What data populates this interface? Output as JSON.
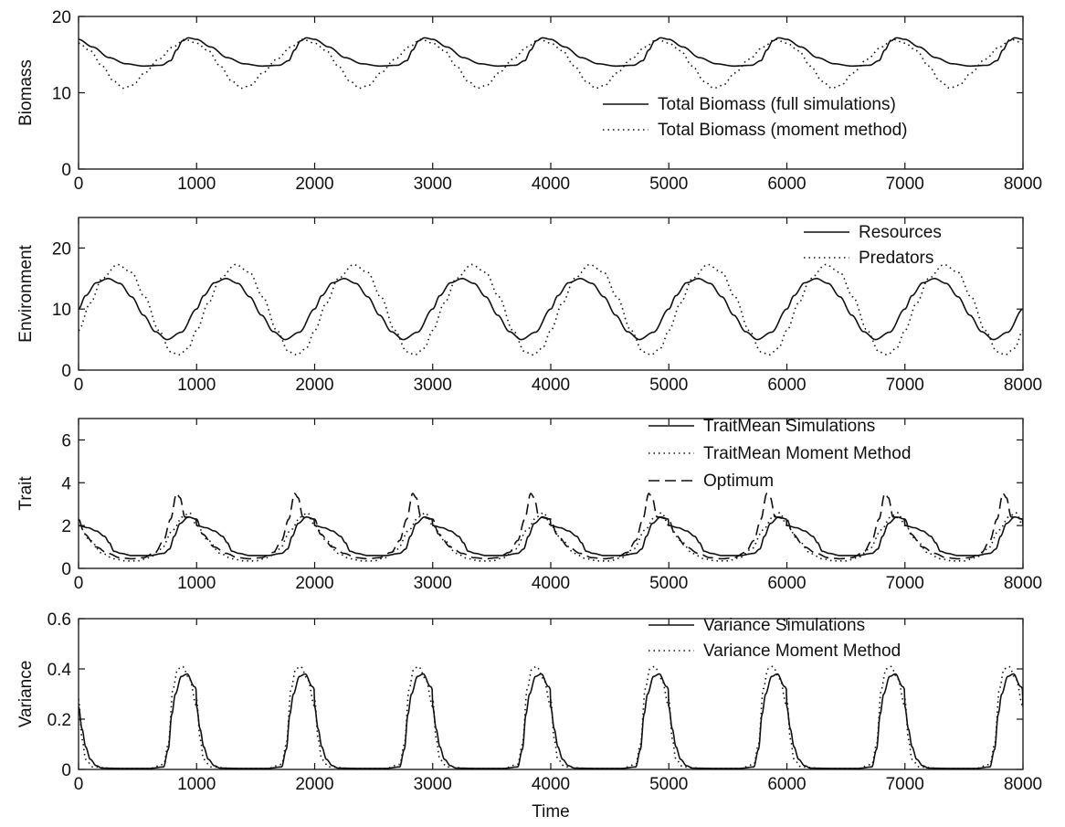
{
  "chart_data": [
    {
      "type": "line",
      "ylabel": "Biomass",
      "xlabel": "",
      "xlim": [
        0,
        8000
      ],
      "ylim": [
        0,
        20
      ],
      "xticks": [
        0,
        1000,
        2000,
        3000,
        4000,
        5000,
        6000,
        7000,
        8000
      ],
      "yticks": [
        0,
        10,
        20
      ],
      "legend_position": "right",
      "series": [
        {
          "name": "Total Biomass (full simulations)",
          "style": "solid",
          "period": 1000,
          "keys": [
            [
              0,
              17.0
            ],
            [
              120,
              16.0
            ],
            [
              260,
              14.6
            ],
            [
              400,
              13.8
            ],
            [
              550,
              13.5
            ],
            [
              700,
              13.6
            ],
            [
              780,
              14.2
            ],
            [
              830,
              15.6
            ],
            [
              880,
              16.8
            ],
            [
              930,
              17.2
            ],
            [
              1000,
              17.0
            ]
          ]
        },
        {
          "name": "Total Biomass (moment method)",
          "style": "dotted",
          "period": 1000,
          "keys": [
            [
              0,
              16.5
            ],
            [
              100,
              15.5
            ],
            [
              200,
              13.5
            ],
            [
              300,
              11.5
            ],
            [
              380,
              10.6
            ],
            [
              460,
              11.0
            ],
            [
              560,
              12.6
            ],
            [
              680,
              14.4
            ],
            [
              800,
              16.0
            ],
            [
              900,
              17.0
            ],
            [
              1000,
              16.5
            ]
          ]
        }
      ]
    },
    {
      "type": "line",
      "ylabel": "Environment",
      "xlabel": "",
      "xlim": [
        0,
        8000
      ],
      "ylim": [
        0,
        25
      ],
      "xticks": [
        0,
        1000,
        2000,
        3000,
        4000,
        5000,
        6000,
        7000,
        8000
      ],
      "yticks": [
        0,
        10,
        20
      ],
      "legend_position": "top-right",
      "series": [
        {
          "name": "Resources",
          "style": "solid",
          "period": 1000,
          "keys": [
            [
              0,
              10.0
            ],
            [
              60,
              12.2
            ],
            [
              150,
              14.3
            ],
            [
              250,
              15.0
            ],
            [
              350,
              14.2
            ],
            [
              450,
              12.0
            ],
            [
              550,
              9.0
            ],
            [
              650,
              6.3
            ],
            [
              750,
              5.0
            ],
            [
              870,
              6.2
            ],
            [
              1000,
              10.0
            ]
          ]
        },
        {
          "name": "Predators",
          "style": "dotted",
          "period": 1000,
          "keys": [
            [
              0,
              6.5
            ],
            [
              100,
              11.0
            ],
            [
              200,
              15.0
            ],
            [
              330,
              17.3
            ],
            [
              450,
              16.0
            ],
            [
              560,
              12.0
            ],
            [
              680,
              6.5
            ],
            [
              780,
              3.0
            ],
            [
              850,
              2.5
            ],
            [
              930,
              3.6
            ],
            [
              1000,
              6.5
            ]
          ]
        }
      ]
    },
    {
      "type": "line",
      "ylabel": "Trait",
      "xlabel": "",
      "xlim": [
        0,
        8000
      ],
      "ylim": [
        0,
        7
      ],
      "xticks": [
        0,
        1000,
        2000,
        3000,
        4000,
        5000,
        6000,
        7000,
        8000
      ],
      "yticks": [
        0,
        2,
        4,
        6
      ],
      "legend_position": "top-right",
      "series": [
        {
          "name": "TraitMean Simulations",
          "style": "solid",
          "period": 1000,
          "keys": [
            [
              0,
              2.0
            ],
            [
              80,
              1.9
            ],
            [
              150,
              1.75
            ],
            [
              220,
              1.5
            ],
            [
              260,
              1.2
            ],
            [
              300,
              0.8
            ],
            [
              360,
              0.7
            ],
            [
              450,
              0.6
            ],
            [
              600,
              0.6
            ],
            [
              720,
              0.7
            ],
            [
              770,
              0.9
            ],
            [
              810,
              1.5
            ],
            [
              860,
              2.1
            ],
            [
              930,
              2.4
            ],
            [
              1000,
              2.3
            ]
          ]
        },
        {
          "name": "TraitMean Moment Method",
          "style": "dotted",
          "period": 1000,
          "keys": [
            [
              0,
              2.0
            ],
            [
              100,
              1.3
            ],
            [
              200,
              0.7
            ],
            [
              300,
              0.45
            ],
            [
              400,
              0.35
            ],
            [
              500,
              0.35
            ],
            [
              600,
              0.5
            ],
            [
              700,
              0.9
            ],
            [
              800,
              1.8
            ],
            [
              880,
              2.4
            ],
            [
              940,
              2.6
            ],
            [
              1000,
              2.0
            ]
          ]
        },
        {
          "name": "Optimum",
          "style": "dashed",
          "period": 1000,
          "keys": [
            [
              0,
              2.3
            ],
            [
              50,
              1.6
            ],
            [
              150,
              1.0
            ],
            [
              250,
              0.7
            ],
            [
              350,
              0.5
            ],
            [
              450,
              0.45
            ],
            [
              550,
              0.5
            ],
            [
              650,
              0.75
            ],
            [
              720,
              1.3
            ],
            [
              780,
              2.3
            ],
            [
              830,
              3.5
            ],
            [
              860,
              3.3
            ],
            [
              900,
              2.4
            ],
            [
              1000,
              2.3
            ]
          ]
        }
      ]
    },
    {
      "type": "line",
      "ylabel": "Variance",
      "xlabel": "Time",
      "xlim": [
        0,
        8000
      ],
      "ylim": [
        0,
        0.6
      ],
      "xticks": [
        0,
        1000,
        2000,
        3000,
        4000,
        5000,
        6000,
        7000,
        8000
      ],
      "yticks": [
        0,
        0.2,
        0.4,
        0.6
      ],
      "legend_position": "top-right",
      "series": [
        {
          "name": "Variance Simulations",
          "style": "solid",
          "period": 1000,
          "keys": [
            [
              0,
              0.25
            ],
            [
              30,
              0.16
            ],
            [
              60,
              0.09
            ],
            [
              100,
              0.04
            ],
            [
              150,
              0.015
            ],
            [
              200,
              0.005
            ],
            [
              400,
              0.004
            ],
            [
              600,
              0.004
            ],
            [
              720,
              0.01
            ],
            [
              760,
              0.08
            ],
            [
              790,
              0.22
            ],
            [
              820,
              0.3
            ],
            [
              870,
              0.37
            ],
            [
              920,
              0.38
            ],
            [
              980,
              0.33
            ],
            [
              1050,
              0.24
            ],
            [
              1120,
              0.14
            ],
            [
              1180,
              0.06
            ],
            [
              1230,
              0.04
            ],
            [
              1260,
              0.06
            ],
            [
              1280,
              0.085
            ],
            [
              1300,
              0.05
            ],
            [
              1330,
              0.015
            ],
            [
              1400,
              0.005
            ],
            [
              1600,
              0.004
            ],
            [
              1700,
              0.01
            ],
            [
              1740,
              0.07
            ],
            [
              1790,
              0.22
            ],
            [
              1840,
              0.33
            ],
            [
              1920,
              0.38
            ],
            [
              2000,
              0.3
            ]
          ]
        },
        {
          "name": "Variance Moment Method",
          "style": "dotted",
          "period": 1000,
          "keys": [
            [
              0,
              0.28
            ],
            [
              30,
              0.12
            ],
            [
              60,
              0.04
            ],
            [
              120,
              0.01
            ],
            [
              300,
              0.004
            ],
            [
              600,
              0.004
            ],
            [
              720,
              0.02
            ],
            [
              760,
              0.1
            ],
            [
              800,
              0.32
            ],
            [
              840,
              0.4
            ],
            [
              880,
              0.41
            ],
            [
              940,
              0.36
            ],
            [
              1000,
              0.25
            ],
            [
              1050,
              0.2
            ],
            [
              1100,
              0.26
            ],
            [
              1130,
              0.27
            ],
            [
              1170,
              0.2
            ],
            [
              1220,
              0.05
            ],
            [
              1300,
              0.01
            ],
            [
              1400,
              0.004
            ],
            [
              1600,
              0.004
            ],
            [
              1700,
              0.02
            ],
            [
              1760,
              0.2
            ],
            [
              1830,
              0.4
            ],
            [
              1880,
              0.41
            ],
            [
              1960,
              0.33
            ],
            [
              2000,
              0.28
            ]
          ]
        }
      ]
    }
  ]
}
